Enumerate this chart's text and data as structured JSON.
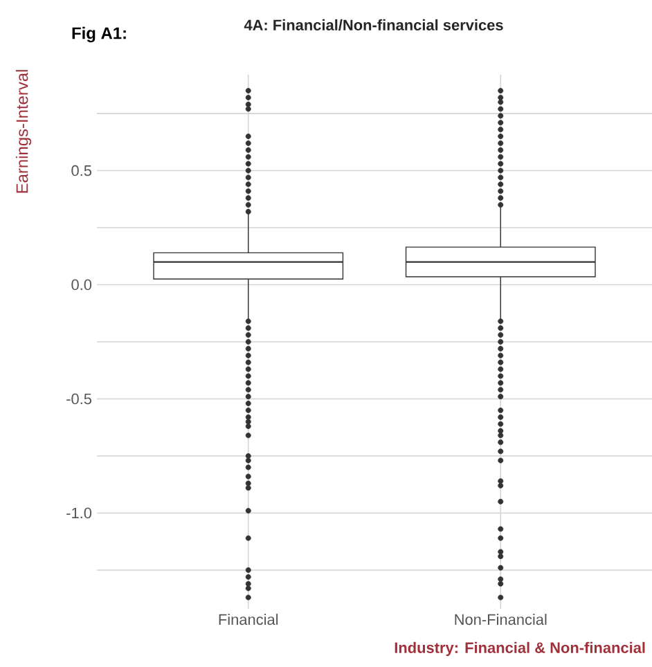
{
  "chart_data": {
    "type": "box",
    "title": "4A: Financial/Non-financial services",
    "xlabel": "Industry: Financial & Non-financial",
    "ylabel": "Earnings-Interval",
    "annotations": [
      "Fig A1:"
    ],
    "categories": [
      "Financial",
      "Non-Financial"
    ],
    "boxes": [
      {
        "low": -0.15,
        "q1": 0.025,
        "median": 0.1,
        "q3": 0.14,
        "high": 0.31,
        "outliers": [
          0.32,
          0.35,
          0.38,
          0.41,
          0.44,
          0.47,
          0.5,
          0.53,
          0.56,
          0.59,
          0.62,
          0.65,
          0.77,
          0.79,
          0.82,
          0.85,
          -0.16,
          -0.19,
          -0.22,
          -0.25,
          -0.28,
          -0.31,
          -0.34,
          -0.37,
          -0.4,
          -0.43,
          -0.46,
          -0.49,
          -0.52,
          -0.55,
          -0.58,
          -0.6,
          -0.62,
          -0.66,
          -0.75,
          -0.77,
          -0.8,
          -0.84,
          -0.87,
          -0.89,
          -0.99,
          -1.11,
          -1.25,
          -1.28,
          -1.31,
          -1.33,
          -1.37
        ]
      },
      {
        "low": -0.15,
        "q1": 0.035,
        "median": 0.1,
        "q3": 0.165,
        "high": 0.34,
        "outliers": [
          0.35,
          0.38,
          0.41,
          0.44,
          0.47,
          0.5,
          0.53,
          0.56,
          0.59,
          0.62,
          0.65,
          0.68,
          0.71,
          0.74,
          0.77,
          0.8,
          0.82,
          0.85,
          -0.16,
          -0.19,
          -0.22,
          -0.25,
          -0.28,
          -0.31,
          -0.34,
          -0.37,
          -0.4,
          -0.43,
          -0.46,
          -0.49,
          -0.55,
          -0.58,
          -0.61,
          -0.64,
          -0.66,
          -0.69,
          -0.73,
          -0.77,
          -0.86,
          -0.88,
          -0.95,
          -1.07,
          -1.11,
          -1.17,
          -1.19,
          -1.24,
          -1.29,
          -1.31,
          -1.37
        ]
      }
    ],
    "ylim": [
      -1.42,
      0.92
    ],
    "yticks": [
      {
        "value": -1.25,
        "label": null
      },
      {
        "value": -1,
        "label": "-1.0"
      },
      {
        "value": -0.75,
        "label": null
      },
      {
        "value": -0.5,
        "label": "-0.5"
      },
      {
        "value": -0.25,
        "label": null
      },
      {
        "value": 0,
        "label": "0.0"
      },
      {
        "value": 0.25,
        "label": null
      },
      {
        "value": 0.5,
        "label": "0.5"
      },
      {
        "value": 0.75,
        "label": null
      }
    ],
    "grid": true
  }
}
